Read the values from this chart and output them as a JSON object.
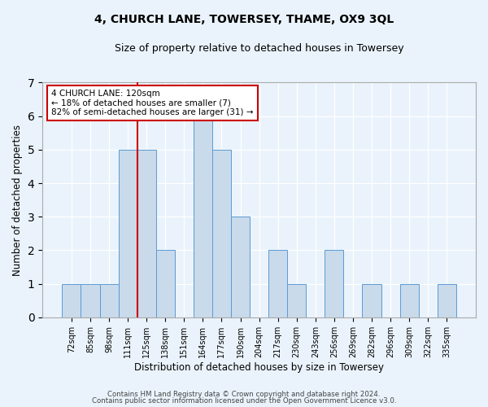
{
  "title": "4, CHURCH LANE, TOWERSEY, THAME, OX9 3QL",
  "subtitle": "Size of property relative to detached houses in Towersey",
  "xlabel": "Distribution of detached houses by size in Towersey",
  "ylabel": "Number of detached properties",
  "bin_labels": [
    "72sqm",
    "85sqm",
    "98sqm",
    "111sqm",
    "125sqm",
    "138sqm",
    "151sqm",
    "164sqm",
    "177sqm",
    "190sqm",
    "204sqm",
    "217sqm",
    "230sqm",
    "243sqm",
    "256sqm",
    "269sqm",
    "282sqm",
    "296sqm",
    "309sqm",
    "322sqm",
    "335sqm"
  ],
  "bar_heights": [
    1,
    1,
    1,
    5,
    5,
    2,
    0,
    6,
    5,
    3,
    0,
    2,
    1,
    0,
    2,
    0,
    1,
    0,
    1,
    0,
    1
  ],
  "bar_color": "#c9daea",
  "bar_edge_color": "#5b9bd5",
  "background_color": "#eaf3fb",
  "marker_line_index": 4,
  "marker_color": "#cc0000",
  "annotation_text": "4 CHURCH LANE: 120sqm\n← 18% of detached houses are smaller (7)\n82% of semi-detached houses are larger (31) →",
  "annotation_box_color": "#ffffff",
  "annotation_border_color": "#cc0000",
  "ylim": [
    0,
    7
  ],
  "yticks": [
    0,
    1,
    2,
    3,
    4,
    5,
    6,
    7
  ],
  "footer_line1": "Contains HM Land Registry data © Crown copyright and database right 2024.",
  "footer_line2": "Contains public sector information licensed under the Open Government Licence v3.0."
}
